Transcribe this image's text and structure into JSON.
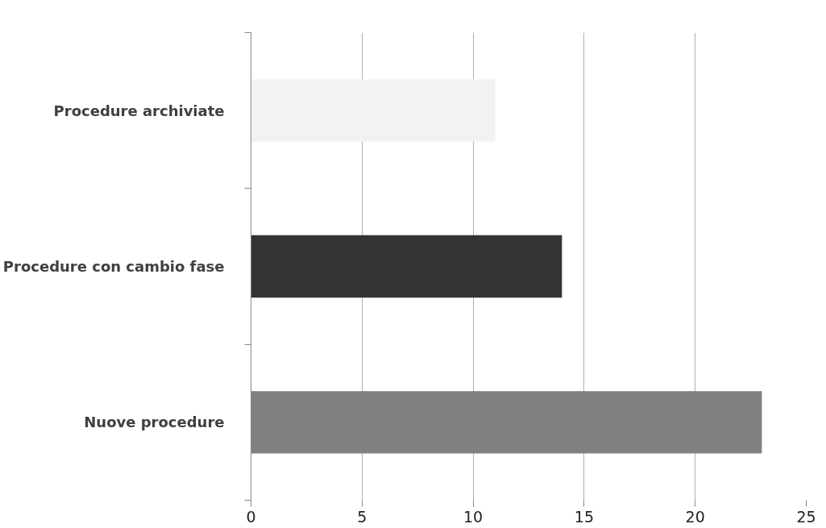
{
  "chart_data": {
    "type": "bar",
    "orientation": "horizontal",
    "categories": [
      "Procedure archiviate",
      "Procedure con cambio fase",
      "Nuove procedure"
    ],
    "values": [
      11,
      14,
      23
    ],
    "colors": [
      "#f2f2f2",
      "#333333",
      "#808080"
    ],
    "xlim": [
      0,
      25
    ],
    "xticks": [
      0,
      5,
      10,
      15,
      20,
      25
    ],
    "grid": "x"
  }
}
